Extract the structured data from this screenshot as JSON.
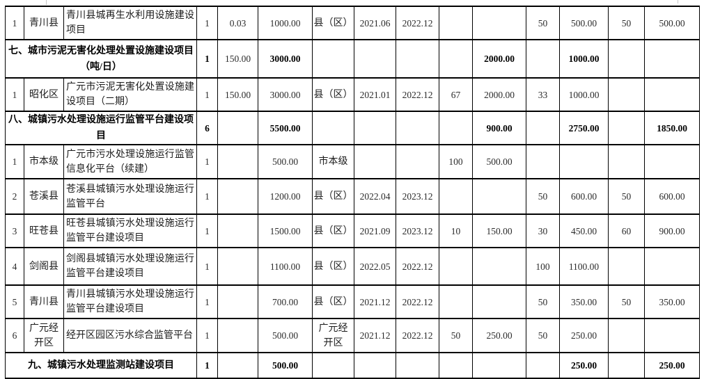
{
  "colors": {
    "grid": "#000000",
    "text": "#1c1c1c",
    "background": "#ffffff"
  },
  "table": {
    "rows": [
      {
        "type": "data",
        "cells": {
          "seq": "1",
          "area": "青川县",
          "name": "青川县城再生水利用设施建设项目",
          "count": "1",
          "scale": "0.03",
          "invest": "1000.00",
          "agency": "县（区）",
          "start": "2021.06",
          "finish": "2022.12",
          "y1_pct": "",
          "y1_amt": "",
          "y2_pct": "50",
          "y2_amt": "500.00",
          "y3_pct": "50",
          "y3_amt": "500.00"
        }
      },
      {
        "type": "section",
        "title": "七、城市污泥无害化处理处置设施建设项目（吨/日）",
        "plain_keys": [
          "scale"
        ],
        "cells": {
          "count": "1",
          "scale": "150.00",
          "invest": "3000.00",
          "agency": "",
          "start": "",
          "finish": "",
          "y1_pct": "",
          "y1_amt": "2000.00",
          "y2_pct": "",
          "y2_amt": "1000.00",
          "y3_pct": "",
          "y3_amt": ""
        }
      },
      {
        "type": "data",
        "cells": {
          "seq": "1",
          "area": "昭化区",
          "name": "广元市污泥无害化处置设施建设项目（二期）",
          "count": "1",
          "scale": "150.00",
          "invest": "3000.00",
          "agency": "县（区）",
          "start": "2021.01",
          "finish": "2022.12",
          "y1_pct": "67",
          "y1_amt": "2000.00",
          "y2_pct": "33",
          "y2_amt": "1000.00",
          "y3_pct": "",
          "y3_amt": ""
        }
      },
      {
        "type": "section",
        "title": "八、城镇污水处理设施运行监管平台建设项目",
        "plain_keys": [],
        "cells": {
          "count": "6",
          "scale": "",
          "invest": "5500.00",
          "agency": "",
          "start": "",
          "finish": "",
          "y1_pct": "",
          "y1_amt": "900.00",
          "y2_pct": "",
          "y2_amt": "2750.00",
          "y3_pct": "",
          "y3_amt": "1850.00"
        }
      },
      {
        "type": "data",
        "cells": {
          "seq": "1",
          "area": "市本级",
          "name": "广元市污水处理设施运行监管信息化平台（续建）",
          "count": "1",
          "scale": "",
          "invest": "500.00",
          "agency": "市本级",
          "start": "",
          "finish": "",
          "y1_pct": "100",
          "y1_amt": "500.00",
          "y2_pct": "",
          "y2_amt": "",
          "y3_pct": "",
          "y3_amt": ""
        }
      },
      {
        "type": "data",
        "cells": {
          "seq": "2",
          "area": "苍溪县",
          "name": "苍溪县城镇污水处理设施运行监管平台",
          "count": "1",
          "scale": "",
          "invest": "1200.00",
          "agency": "县（区）",
          "start": "2022.04",
          "finish": "2023.12",
          "y1_pct": "",
          "y1_amt": "",
          "y2_pct": "50",
          "y2_amt": "600.00",
          "y3_pct": "50",
          "y3_amt": "600.00"
        }
      },
      {
        "type": "data",
        "cells": {
          "seq": "3",
          "area": "旺苍县",
          "name": "旺苍县城镇污水处理设施运行监管平台建设项目",
          "count": "1",
          "scale": "",
          "invest": "1500.00",
          "agency": "县（区）",
          "start": "2021.09",
          "finish": "2023.12",
          "y1_pct": "10",
          "y1_amt": "150.00",
          "y2_pct": "30",
          "y2_amt": "450.00",
          "y3_pct": "60",
          "y3_amt": "900.00"
        }
      },
      {
        "type": "data",
        "cells": {
          "seq": "4",
          "area": "剑阁县",
          "name": "剑阁县城镇污水处理设施运行监管平台建设项目",
          "count": "1",
          "scale": "",
          "invest": "1100.00",
          "agency": "县（区）",
          "start": "2022.05",
          "finish": "2022.12",
          "y1_pct": "",
          "y1_amt": "",
          "y2_pct": "100",
          "y2_amt": "1100.00",
          "y3_pct": "",
          "y3_amt": ""
        }
      },
      {
        "type": "data",
        "cells": {
          "seq": "5",
          "area": "青川县",
          "name": "青川县城镇污水处理设施运行监管平台建设项目",
          "count": "1",
          "scale": "",
          "invest": "700.00",
          "agency": "县（区）",
          "start": "2021.12",
          "finish": "2022.12",
          "y1_pct": "",
          "y1_amt": "",
          "y2_pct": "50",
          "y2_amt": "350.00",
          "y3_pct": "50",
          "y3_amt": "350.00"
        }
      },
      {
        "type": "data",
        "cells": {
          "seq": "6",
          "area": "广元经\n开区",
          "name": "经开区园区污水综合监管平台",
          "count": "1",
          "scale": "",
          "invest": "500.00",
          "agency": "广元经\n开区",
          "start": "2021.12",
          "finish": "2022.12",
          "y1_pct": "50",
          "y1_amt": "250.00",
          "y2_pct": "50",
          "y2_amt": "250.00",
          "y3_pct": "",
          "y3_amt": ""
        }
      },
      {
        "type": "section",
        "title": "九、城镇污水处理监测站建设项目",
        "plain_keys": [],
        "cells": {
          "count": "1",
          "scale": "",
          "invest": "500.00",
          "agency": "",
          "start": "",
          "finish": "",
          "y1_pct": "",
          "y1_amt": "",
          "y2_pct": "",
          "y2_amt": "250.00",
          "y3_pct": "",
          "y3_amt": "250.00"
        }
      }
    ]
  }
}
